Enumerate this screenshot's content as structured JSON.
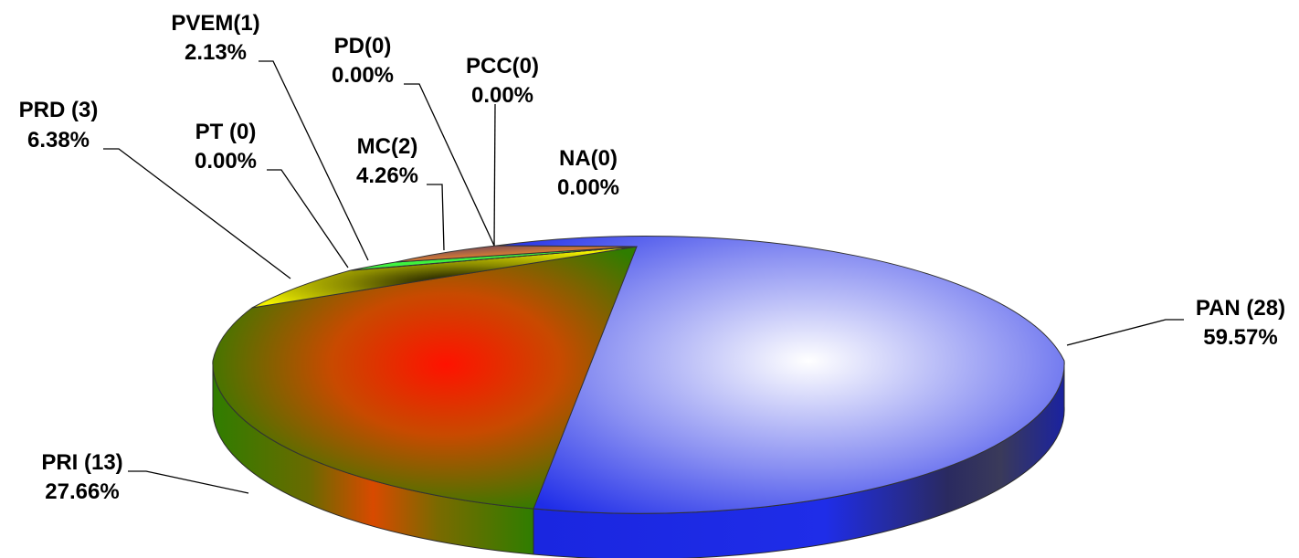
{
  "chart_data": {
    "type": "pie",
    "style": "3d-exploded-gradient",
    "title": "",
    "slices": [
      {
        "label": "PAN (28)",
        "pct_label": "59.57%",
        "value": 28,
        "percent": 59.57,
        "color": "#1f2de8"
      },
      {
        "label": "PRI (13)",
        "pct_label": "27.66%",
        "value": 13,
        "percent": 27.66,
        "color": "#2f7d00"
      },
      {
        "label": "PRD (3)",
        "pct_label": "6.38%",
        "value": 3,
        "percent": 6.38,
        "color": "#f2f200"
      },
      {
        "label": "PT (0)",
        "pct_label": "0.00%",
        "value": 0,
        "percent": 0.0,
        "color": "#ffffff"
      },
      {
        "label": "PVEM(1)",
        "pct_label": "2.13%",
        "value": 1,
        "percent": 2.13,
        "color": "#3ff23f"
      },
      {
        "label": "MC(2)",
        "pct_label": "4.26%",
        "value": 2,
        "percent": 4.26,
        "color": "#f08a2a"
      },
      {
        "label": "PD(0)",
        "pct_label": "0.00%",
        "value": 0,
        "percent": 0.0,
        "color": "#4a2f6a"
      },
      {
        "label": "PCC(0)",
        "pct_label": "0.00%",
        "value": 0,
        "percent": 0.0,
        "color": "#7a3fa0"
      },
      {
        "label": "NA(0)",
        "pct_label": "0.00%",
        "value": 0,
        "percent": 0.0,
        "color": "#3030a0"
      }
    ]
  }
}
